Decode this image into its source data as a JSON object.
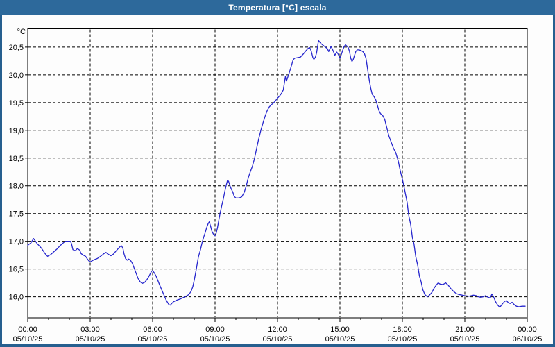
{
  "window": {
    "title": "Temperatura [°C] escala"
  },
  "colors": {
    "titlebar_bg": "#2d699b",
    "window_border": "#265f8f",
    "line": "#2525cd",
    "grid": "#000000",
    "text": "#000000",
    "plot_bg": "#fdfdfd"
  },
  "chart_data": {
    "type": "line",
    "title": "Temperatura [°C] escala",
    "unit_label": "°C",
    "grid": true,
    "legend": "none",
    "ylim": [
      15.62,
      20.83
    ],
    "y_axis": {
      "ticks": [
        {
          "value": 16.0,
          "label": "16,0"
        },
        {
          "value": 16.5,
          "label": "16,5"
        },
        {
          "value": 17.0,
          "label": "17,0"
        },
        {
          "value": 17.5,
          "label": "17,5"
        },
        {
          "value": 18.0,
          "label": "18,0"
        },
        {
          "value": 18.5,
          "label": "18,5"
        },
        {
          "value": 19.0,
          "label": "19,0"
        },
        {
          "value": 19.5,
          "label": "19,5"
        },
        {
          "value": 20.0,
          "label": "20,0"
        },
        {
          "value": 20.5,
          "label": "20,5"
        }
      ]
    },
    "x_axis": {
      "min": 0,
      "max": 24,
      "minor_step_hours": 1,
      "major_ticks": [
        {
          "hours": 0,
          "time": "00:00",
          "date": "05/10/25"
        },
        {
          "hours": 3,
          "time": "03:00",
          "date": "05/10/25"
        },
        {
          "hours": 6,
          "time": "06:00",
          "date": "05/10/25"
        },
        {
          "hours": 9,
          "time": "09:00",
          "date": "05/10/25"
        },
        {
          "hours": 12,
          "time": "12:00",
          "date": "05/10/25"
        },
        {
          "hours": 15,
          "time": "15:00",
          "date": "05/10/25"
        },
        {
          "hours": 18,
          "time": "18:00",
          "date": "05/10/25"
        },
        {
          "hours": 21,
          "time": "21:00",
          "date": "05/10/25"
        },
        {
          "hours": 24,
          "time": "00:00",
          "date": "06/10/25"
        }
      ]
    },
    "series": [
      {
        "name": "Temperatura",
        "color": "#2525cd",
        "points": [
          [
            0.0,
            16.93
          ],
          [
            0.15,
            16.97
          ],
          [
            0.28,
            17.05
          ],
          [
            0.45,
            16.96
          ],
          [
            0.6,
            16.9
          ],
          [
            0.67,
            16.87
          ],
          [
            0.83,
            16.78
          ],
          [
            0.95,
            16.73
          ],
          [
            1.1,
            16.76
          ],
          [
            1.25,
            16.81
          ],
          [
            1.4,
            16.86
          ],
          [
            1.55,
            16.92
          ],
          [
            1.67,
            16.96
          ],
          [
            1.8,
            17.0
          ],
          [
            2.05,
            17.0
          ],
          [
            2.1,
            16.96
          ],
          [
            2.17,
            16.85
          ],
          [
            2.28,
            16.83
          ],
          [
            2.39,
            16.87
          ],
          [
            2.5,
            16.84
          ],
          [
            2.56,
            16.78
          ],
          [
            2.67,
            16.75
          ],
          [
            2.78,
            16.73
          ],
          [
            2.85,
            16.69
          ],
          [
            2.93,
            16.65
          ],
          [
            3.0,
            16.63
          ],
          [
            3.1,
            16.65
          ],
          [
            3.2,
            16.67
          ],
          [
            3.34,
            16.69
          ],
          [
            3.5,
            16.73
          ],
          [
            3.67,
            16.78
          ],
          [
            3.76,
            16.8
          ],
          [
            3.85,
            16.77
          ],
          [
            4.0,
            16.74
          ],
          [
            4.12,
            16.77
          ],
          [
            4.23,
            16.82
          ],
          [
            4.35,
            16.87
          ],
          [
            4.45,
            16.91
          ],
          [
            4.5,
            16.92
          ],
          [
            4.57,
            16.88
          ],
          [
            4.63,
            16.77
          ],
          [
            4.7,
            16.69
          ],
          [
            4.78,
            16.66
          ],
          [
            4.85,
            16.68
          ],
          [
            4.95,
            16.65
          ],
          [
            5.03,
            16.6
          ],
          [
            5.1,
            16.53
          ],
          [
            5.2,
            16.43
          ],
          [
            5.3,
            16.33
          ],
          [
            5.4,
            16.27
          ],
          [
            5.5,
            16.24
          ],
          [
            5.62,
            16.26
          ],
          [
            5.73,
            16.31
          ],
          [
            5.84,
            16.38
          ],
          [
            5.95,
            16.46
          ],
          [
            6.0,
            16.47
          ],
          [
            6.08,
            16.43
          ],
          [
            6.17,
            16.37
          ],
          [
            6.33,
            16.22
          ],
          [
            6.5,
            16.07
          ],
          [
            6.65,
            15.94
          ],
          [
            6.78,
            15.86
          ],
          [
            6.85,
            15.85
          ],
          [
            6.92,
            15.88
          ],
          [
            7.0,
            15.91
          ],
          [
            7.17,
            15.94
          ],
          [
            7.33,
            15.96
          ],
          [
            7.5,
            15.99
          ],
          [
            7.6,
            16.01
          ],
          [
            7.7,
            16.03
          ],
          [
            7.78,
            16.06
          ],
          [
            7.85,
            16.1
          ],
          [
            7.93,
            16.18
          ],
          [
            8.0,
            16.3
          ],
          [
            8.1,
            16.5
          ],
          [
            8.2,
            16.72
          ],
          [
            8.3,
            16.85
          ],
          [
            8.38,
            16.98
          ],
          [
            8.45,
            17.07
          ],
          [
            8.52,
            17.15
          ],
          [
            8.6,
            17.25
          ],
          [
            8.67,
            17.32
          ],
          [
            8.72,
            17.35
          ],
          [
            8.78,
            17.28
          ],
          [
            8.85,
            17.18
          ],
          [
            8.92,
            17.13
          ],
          [
            9.0,
            17.1
          ],
          [
            9.05,
            17.14
          ],
          [
            9.12,
            17.25
          ],
          [
            9.18,
            17.38
          ],
          [
            9.25,
            17.52
          ],
          [
            9.32,
            17.64
          ],
          [
            9.4,
            17.77
          ],
          [
            9.47,
            17.9
          ],
          [
            9.53,
            18.0
          ],
          [
            9.6,
            18.1
          ],
          [
            9.65,
            18.08
          ],
          [
            9.72,
            18.0
          ],
          [
            9.78,
            17.94
          ],
          [
            9.85,
            17.89
          ],
          [
            9.92,
            17.81
          ],
          [
            10.0,
            17.78
          ],
          [
            10.15,
            17.78
          ],
          [
            10.28,
            17.8
          ],
          [
            10.4,
            17.88
          ],
          [
            10.5,
            18.0
          ],
          [
            10.6,
            18.15
          ],
          [
            10.7,
            18.26
          ],
          [
            10.8,
            18.36
          ],
          [
            10.9,
            18.5
          ],
          [
            11.0,
            18.68
          ],
          [
            11.1,
            18.85
          ],
          [
            11.2,
            19.0
          ],
          [
            11.3,
            19.13
          ],
          [
            11.4,
            19.25
          ],
          [
            11.5,
            19.35
          ],
          [
            11.6,
            19.42
          ],
          [
            11.7,
            19.46
          ],
          [
            11.8,
            19.49
          ],
          [
            11.9,
            19.53
          ],
          [
            12.0,
            19.58
          ],
          [
            12.1,
            19.62
          ],
          [
            12.2,
            19.67
          ],
          [
            12.28,
            19.73
          ],
          [
            12.33,
            19.85
          ],
          [
            12.38,
            19.97
          ],
          [
            12.43,
            19.89
          ],
          [
            12.48,
            19.94
          ],
          [
            12.53,
            20.0
          ],
          [
            12.6,
            20.08
          ],
          [
            12.68,
            20.18
          ],
          [
            12.75,
            20.27
          ],
          [
            12.82,
            20.3
          ],
          [
            12.95,
            20.31
          ],
          [
            13.1,
            20.32
          ],
          [
            13.25,
            20.38
          ],
          [
            13.38,
            20.44
          ],
          [
            13.48,
            20.48
          ],
          [
            13.55,
            20.49
          ],
          [
            13.62,
            20.43
          ],
          [
            13.7,
            20.31
          ],
          [
            13.75,
            20.28
          ],
          [
            13.82,
            20.32
          ],
          [
            13.88,
            20.4
          ],
          [
            13.93,
            20.52
          ],
          [
            13.97,
            20.62
          ],
          [
            14.03,
            20.59
          ],
          [
            14.1,
            20.56
          ],
          [
            14.2,
            20.53
          ],
          [
            14.3,
            20.5
          ],
          [
            14.4,
            20.47
          ],
          [
            14.46,
            20.42
          ],
          [
            14.52,
            20.47
          ],
          [
            14.57,
            20.51
          ],
          [
            14.63,
            20.47
          ],
          [
            14.7,
            20.41
          ],
          [
            14.75,
            20.35
          ],
          [
            14.8,
            20.38
          ],
          [
            14.85,
            20.41
          ],
          [
            14.92,
            20.37
          ],
          [
            15.0,
            20.3
          ],
          [
            15.07,
            20.37
          ],
          [
            15.13,
            20.44
          ],
          [
            15.2,
            20.51
          ],
          [
            15.27,
            20.54
          ],
          [
            15.33,
            20.52
          ],
          [
            15.4,
            20.49
          ],
          [
            15.46,
            20.42
          ],
          [
            15.52,
            20.3
          ],
          [
            15.58,
            20.24
          ],
          [
            15.64,
            20.28
          ],
          [
            15.7,
            20.35
          ],
          [
            15.76,
            20.42
          ],
          [
            15.83,
            20.45
          ],
          [
            15.92,
            20.45
          ],
          [
            16.0,
            20.44
          ],
          [
            16.1,
            20.42
          ],
          [
            16.18,
            20.38
          ],
          [
            16.25,
            20.3
          ],
          [
            16.3,
            20.18
          ],
          [
            16.36,
            20.02
          ],
          [
            16.42,
            19.88
          ],
          [
            16.48,
            19.76
          ],
          [
            16.55,
            19.65
          ],
          [
            16.65,
            19.6
          ],
          [
            16.72,
            19.55
          ],
          [
            16.8,
            19.45
          ],
          [
            16.88,
            19.35
          ],
          [
            16.95,
            19.3
          ],
          [
            17.05,
            19.27
          ],
          [
            17.15,
            19.2
          ],
          [
            17.25,
            19.05
          ],
          [
            17.35,
            18.9
          ],
          [
            17.45,
            18.8
          ],
          [
            17.57,
            18.68
          ],
          [
            17.68,
            18.6
          ],
          [
            17.8,
            18.45
          ],
          [
            17.9,
            18.27
          ],
          [
            18.0,
            18.12
          ],
          [
            18.07,
            18.0
          ],
          [
            18.15,
            17.85
          ],
          [
            18.23,
            17.7
          ],
          [
            18.3,
            17.48
          ],
          [
            18.4,
            17.3
          ],
          [
            18.48,
            17.07
          ],
          [
            18.56,
            16.95
          ],
          [
            18.64,
            16.73
          ],
          [
            18.73,
            16.58
          ],
          [
            18.82,
            16.37
          ],
          [
            18.9,
            16.27
          ],
          [
            18.98,
            16.13
          ],
          [
            19.08,
            16.04
          ],
          [
            19.2,
            16.0
          ],
          [
            19.3,
            16.03
          ],
          [
            19.42,
            16.08
          ],
          [
            19.53,
            16.16
          ],
          [
            19.65,
            16.22
          ],
          [
            19.72,
            16.25
          ],
          [
            19.8,
            16.23
          ],
          [
            19.95,
            16.22
          ],
          [
            20.08,
            16.25
          ],
          [
            20.2,
            16.21
          ],
          [
            20.32,
            16.15
          ],
          [
            20.45,
            16.1
          ],
          [
            20.58,
            16.06
          ],
          [
            20.72,
            16.04
          ],
          [
            20.87,
            16.03
          ],
          [
            21.0,
            16.02
          ],
          [
            21.2,
            16.01
          ],
          [
            21.42,
            16.03
          ],
          [
            21.55,
            16.02
          ],
          [
            21.65,
            16.0
          ],
          [
            21.77,
            15.99
          ],
          [
            21.88,
            16.0
          ],
          [
            22.0,
            16.02
          ],
          [
            22.12,
            15.99
          ],
          [
            22.22,
            15.98
          ],
          [
            22.3,
            16.05
          ],
          [
            22.38,
            16.0
          ],
          [
            22.48,
            15.91
          ],
          [
            22.58,
            15.85
          ],
          [
            22.68,
            15.81
          ],
          [
            22.8,
            15.87
          ],
          [
            22.92,
            15.92
          ],
          [
            23.0,
            15.93
          ],
          [
            23.1,
            15.89
          ],
          [
            23.18,
            15.88
          ],
          [
            23.27,
            15.9
          ],
          [
            23.37,
            15.86
          ],
          [
            23.48,
            15.83
          ],
          [
            23.6,
            15.82
          ],
          [
            23.75,
            15.83
          ],
          [
            23.9,
            15.83
          ]
        ]
      }
    ]
  }
}
